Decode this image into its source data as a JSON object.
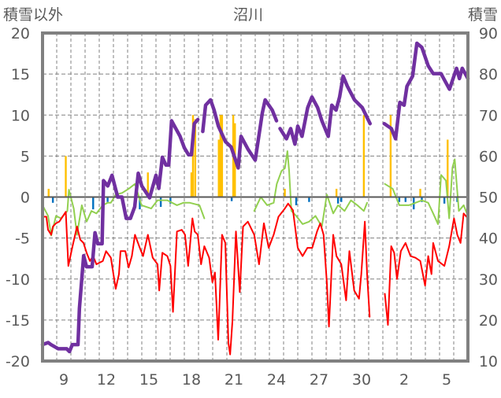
{
  "chart_data": {
    "type": "line",
    "title": "沼川",
    "ylabel_left": "積雪以外",
    "ylabel_right": "積雪",
    "ylim_left": [
      -20,
      20
    ],
    "ylim_right": [
      10,
      90
    ],
    "yticks_left": [
      20,
      15,
      10,
      5,
      0,
      -5,
      -10,
      -15,
      -20
    ],
    "yticks_right": [
      90,
      80,
      70,
      60,
      50,
      40,
      30,
      20,
      10
    ],
    "xlim_days": [
      7.5,
      37.5
    ],
    "xticks": [
      {
        "day": 9,
        "label": "9"
      },
      {
        "day": 12,
        "label": "12"
      },
      {
        "day": 15,
        "label": "15"
      },
      {
        "day": 18,
        "label": "18"
      },
      {
        "day": 21,
        "label": "21"
      },
      {
        "day": 24,
        "label": "24"
      },
      {
        "day": 27,
        "label": "27"
      },
      {
        "day": 30,
        "label": "30"
      },
      {
        "day": 33,
        "label": "2"
      },
      {
        "day": 36,
        "label": "5"
      }
    ],
    "grid": true,
    "colors": {
      "snow": "#7030a0",
      "red": "#ff0000",
      "green": "#92d050",
      "orange": "#ffc000",
      "blue": "#0070c0",
      "axis": "#808080",
      "grid": "#808080"
    },
    "snow_depth_right_axis": [
      [
        [
          7.5,
          14
        ],
        [
          7.9,
          14.5
        ],
        [
          8.1,
          14
        ],
        [
          8.6,
          13
        ],
        [
          9.2,
          13
        ],
        [
          9.4,
          12.3
        ],
        [
          9.6,
          14
        ],
        [
          10.0,
          14
        ],
        [
          10.1,
          22.8
        ],
        [
          10.4,
          35.7
        ],
        [
          10.6,
          33
        ],
        [
          11.0,
          33
        ],
        [
          11.2,
          41.3
        ],
        [
          11.4,
          38.6
        ],
        [
          11.7,
          38.6
        ],
        [
          11.8,
          54
        ],
        [
          12.1,
          52.7
        ],
        [
          12.4,
          55.3
        ],
        [
          12.8,
          50
        ],
        [
          13.1,
          50
        ],
        [
          13.4,
          44.8
        ],
        [
          13.7,
          44.8
        ],
        [
          14.0,
          47.6
        ],
        [
          14.25,
          55.8
        ],
        [
          14.5,
          52.7
        ],
        [
          15.05,
          49.8
        ],
        [
          15.5,
          55.3
        ],
        [
          15.7,
          52.1
        ],
        [
          15.95,
          59.7
        ],
        [
          16.2,
          57.8
        ],
        [
          16.4,
          57.8
        ],
        [
          16.6,
          68.6
        ],
        [
          16.9,
          66.7
        ],
        [
          17.2,
          64.8
        ],
        [
          17.5,
          62
        ],
        [
          17.8,
          60.3
        ],
        [
          18.0,
          60.3
        ],
        [
          18.2,
          67.9
        ],
        [
          18.45,
          68.9
        ]
      ],
      [
        [
          18.8,
          66
        ],
        [
          19.0,
          72.4
        ],
        [
          19.35,
          73.7
        ],
        [
          19.6,
          71.2
        ],
        [
          19.9,
          67.3
        ],
        [
          20.4,
          63.5
        ],
        [
          20.8,
          62.2
        ],
        [
          21.3,
          57.1
        ],
        [
          21.5,
          64.8
        ],
        [
          22.0,
          61.6
        ],
        [
          22.5,
          59
        ],
        [
          23.0,
          70.5
        ],
        [
          23.2,
          73.7
        ],
        [
          23.7,
          71.2
        ],
        [
          24.0,
          68.6
        ]
      ],
      [
        [
          24.25,
          66.7
        ],
        [
          24.7,
          64.2
        ],
        [
          25.0,
          66.7
        ],
        [
          25.3,
          62.9
        ],
        [
          25.5,
          67.3
        ],
        [
          25.8,
          64.8
        ],
        [
          26.2,
          71.8
        ],
        [
          26.5,
          74.4
        ],
        [
          26.9,
          71.8
        ],
        [
          27.2,
          68.6
        ],
        [
          27.65,
          64.8
        ],
        [
          27.9,
          72.4
        ],
        [
          28.2,
          71.2
        ],
        [
          28.45,
          74.4
        ],
        [
          28.7,
          79.5
        ],
        [
          29.0,
          77
        ],
        [
          29.5,
          73.7
        ],
        [
          30.05,
          71.8
        ],
        [
          30.6,
          67.9
        ]
      ],
      [
        [
          31.6,
          67.9
        ],
        [
          32.1,
          66.7
        ],
        [
          32.4,
          64.2
        ],
        [
          32.7,
          73.1
        ],
        [
          33.0,
          72.4
        ],
        [
          33.2,
          77
        ],
        [
          33.6,
          79.5
        ],
        [
          33.9,
          87.5
        ],
        [
          34.25,
          86.5
        ],
        [
          34.7,
          82
        ],
        [
          35.05,
          80.1
        ],
        [
          35.6,
          80.1
        ],
        [
          36.2,
          76.3
        ],
        [
          36.7,
          81.4
        ],
        [
          36.9,
          78.9
        ],
        [
          37.1,
          81.4
        ],
        [
          37.5,
          78.9
        ]
      ]
    ],
    "red_series_left_axis": [
      [
        [
          7.5,
          -2.4
        ],
        [
          7.77,
          -2.4
        ],
        [
          7.89,
          -4
        ],
        [
          8.11,
          -4.6
        ],
        [
          8.23,
          -3.6
        ],
        [
          8.45,
          -3.2
        ],
        [
          8.68,
          -3
        ],
        [
          8.91,
          -2.4
        ],
        [
          9.14,
          -1.8
        ],
        [
          9.32,
          -8.4
        ],
        [
          9.59,
          -6.2
        ],
        [
          9.93,
          -3.6
        ],
        [
          10.16,
          -5.2
        ],
        [
          10.39,
          -5.6
        ],
        [
          10.61,
          -6.8
        ],
        [
          10.84,
          -7.8
        ],
        [
          11.07,
          -7.2
        ],
        [
          11.3,
          -8.2
        ],
        [
          11.75,
          -7.8
        ],
        [
          11.98,
          -6.6
        ],
        [
          12.32,
          -7.4
        ],
        [
          12.66,
          -11.2
        ],
        [
          12.89,
          -9.4
        ],
        [
          13.0,
          -6.6
        ],
        [
          13.34,
          -6.6
        ],
        [
          13.57,
          -8.6
        ],
        [
          13.8,
          -7.2
        ],
        [
          14.02,
          -4.6
        ],
        [
          14.36,
          -6.2
        ],
        [
          14.59,
          -7.2
        ],
        [
          14.93,
          -4.6
        ],
        [
          15.27,
          -7.4
        ],
        [
          15.61,
          -8.2
        ],
        [
          15.73,
          -11.4
        ],
        [
          15.95,
          -6.8
        ],
        [
          16.3,
          -7.2
        ],
        [
          16.52,
          -8.4
        ],
        [
          16.7,
          -14
        ],
        [
          16.98,
          -4.2
        ],
        [
          17.32,
          -4
        ],
        [
          17.55,
          -4.6
        ],
        [
          17.77,
          -8.4
        ],
        [
          18.07,
          -2.6
        ],
        [
          18.23,
          -4.2
        ],
        [
          18.45,
          -4.6
        ],
        [
          18.68,
          -8.2
        ],
        [
          18.91,
          -6
        ],
        [
          19.25,
          -7.4
        ],
        [
          19.48,
          -10.4
        ],
        [
          19.66,
          -9.2
        ],
        [
          19.89,
          -17.4
        ],
        [
          20.16,
          -4.6
        ],
        [
          20.39,
          -5.6
        ],
        [
          20.61,
          -17.8
        ],
        [
          20.73,
          -19.2
        ],
        [
          20.89,
          -15.2
        ],
        [
          21.14,
          -4.2
        ],
        [
          21.41,
          -11.6
        ],
        [
          21.64,
          -3.6
        ],
        [
          21.98,
          -3
        ],
        [
          22.43,
          -4.6
        ],
        [
          22.77,
          -8.2
        ],
        [
          23.11,
          -3.2
        ],
        [
          23.45,
          -6.2
        ],
        [
          23.8,
          -4.6
        ],
        [
          24.14,
          -2.4
        ],
        [
          24.59,
          -1.4
        ],
        [
          24.82,
          -0.8
        ],
        [
          25.16,
          -1.6
        ],
        [
          25.5,
          -6.2
        ],
        [
          25.84,
          -7.2
        ],
        [
          26.18,
          -6.2
        ],
        [
          26.52,
          -6.2
        ],
        [
          26.86,
          -4.2
        ],
        [
          27.09,
          -3.2
        ],
        [
          27.32,
          -4.6
        ],
        [
          27.55,
          -10.4
        ],
        [
          27.7,
          -15.8
        ],
        [
          28.0,
          -4.6
        ],
        [
          28.23,
          -7.2
        ],
        [
          28.57,
          -8.2
        ],
        [
          28.91,
          -12.6
        ],
        [
          29.14,
          -6.6
        ],
        [
          29.48,
          -11.4
        ],
        [
          29.82,
          -12.4
        ],
        [
          29.98,
          -9.4
        ],
        [
          30.23,
          -3
        ],
        [
          30.39,
          -9.4
        ],
        [
          30.57,
          -14.6
        ]
      ],
      [
        [
          31.64,
          -11.8
        ],
        [
          31.86,
          -15.6
        ],
        [
          32.09,
          -6
        ],
        [
          32.3,
          -6.8
        ],
        [
          32.5,
          -10
        ],
        [
          32.77,
          -6.6
        ],
        [
          33.1,
          -5.6
        ],
        [
          33.45,
          -7.2
        ],
        [
          33.8,
          -7.4
        ],
        [
          34.14,
          -7.8
        ],
        [
          34.48,
          -10.8
        ],
        [
          34.7,
          -7.2
        ],
        [
          34.93,
          -9.4
        ],
        [
          35.05,
          -5.6
        ],
        [
          35.39,
          -7.8
        ],
        [
          35.84,
          -8.4
        ],
        [
          36.18,
          -6
        ],
        [
          36.52,
          -2.6
        ],
        [
          36.75,
          -4.6
        ],
        [
          36.98,
          -5.6
        ],
        [
          37.2,
          -2
        ],
        [
          37.5,
          -2.6
        ]
      ]
    ],
    "green_series_left_axis": [
      [
        [
          7.5,
          -1
        ],
        [
          7.89,
          -2.3
        ],
        [
          8.11,
          -4.7
        ],
        [
          8.45,
          -2.3
        ],
        [
          8.8,
          -2.6
        ],
        [
          9.25,
          -1.7
        ],
        [
          9.36,
          0.9
        ],
        [
          9.7,
          -1.4
        ],
        [
          9.93,
          -4.6
        ],
        [
          10.27,
          -1
        ],
        [
          10.61,
          -3
        ],
        [
          10.95,
          -1.7
        ],
        [
          11.3,
          -2
        ],
        [
          11.75,
          -1
        ],
        [
          12.09,
          -0.7
        ],
        [
          12.32,
          -0.7
        ],
        [
          12.66,
          0.3
        ],
        [
          13.11,
          0.5
        ],
        [
          13.57,
          1
        ],
        [
          14.02,
          1.6
        ],
        [
          14.48,
          -1
        ],
        [
          15.16,
          -1.4
        ],
        [
          15.61,
          -0.4
        ],
        [
          16.3,
          -0.4
        ],
        [
          16.98,
          -1
        ],
        [
          17.43,
          -0.7
        ],
        [
          17.89,
          -0.7
        ],
        [
          18.57,
          -1
        ],
        [
          18.91,
          -2.6
        ]
      ],
      [
        [
          22.43,
          -1.7
        ],
        [
          22.89,
          0
        ],
        [
          23.34,
          -1
        ],
        [
          23.8,
          -0.7
        ],
        [
          24.02,
          1.6
        ],
        [
          24.36,
          3.2
        ],
        [
          24.59,
          3.5
        ],
        [
          24.77,
          5.6
        ],
        [
          24.89,
          3.2
        ],
        [
          25.05,
          -1.7
        ],
        [
          25.39,
          -2.3
        ],
        [
          25.84,
          -3.3
        ],
        [
          26.3,
          -3
        ],
        [
          26.75,
          -2.3
        ],
        [
          27.2,
          -3.6
        ],
        [
          27.55,
          0.3
        ],
        [
          28.0,
          -2
        ],
        [
          28.34,
          -1
        ],
        [
          28.8,
          -1.7
        ],
        [
          29.25,
          -0.4
        ],
        [
          29.7,
          -1
        ],
        [
          30.16,
          -1.7
        ],
        [
          30.39,
          -0.7
        ]
      ],
      [
        [
          31.64,
          1.6
        ],
        [
          32.2,
          1
        ],
        [
          32.66,
          -1
        ],
        [
          33.34,
          -1
        ],
        [
          33.8,
          -0.7
        ],
        [
          34.25,
          -0.4
        ],
        [
          34.7,
          -0.7
        ],
        [
          35.05,
          -2
        ],
        [
          35.39,
          -3.3
        ],
        [
          35.61,
          2.7
        ],
        [
          35.95,
          2
        ],
        [
          36.18,
          -2.6
        ],
        [
          36.41,
          3.6
        ],
        [
          36.57,
          4.6
        ],
        [
          36.86,
          -1.7
        ],
        [
          37.2,
          -1
        ],
        [
          37.5,
          -2.3
        ]
      ]
    ],
    "orange_bars_left_axis": [
      [
        7.93,
        1
      ],
      [
        9.14,
        5
      ],
      [
        14.93,
        3
      ],
      [
        18.0,
        3
      ],
      [
        18.11,
        10
      ],
      [
        18.27,
        9.5
      ],
      [
        19.93,
        7
      ],
      [
        20.05,
        10
      ],
      [
        20.16,
        10
      ],
      [
        20.95,
        10
      ],
      [
        21.07,
        9
      ],
      [
        24.59,
        1
      ],
      [
        28.23,
        1
      ],
      [
        30.16,
        10
      ],
      [
        32.05,
        10
      ],
      [
        34.14,
        1
      ],
      [
        36.07,
        7
      ]
    ],
    "blue_bars_left_axis": [
      [
        8.23,
        -0.7
      ],
      [
        11.07,
        -1.5
      ],
      [
        12.09,
        -0.6
      ],
      [
        14.36,
        -1.5
      ],
      [
        15.84,
        -1.2
      ],
      [
        16.52,
        -0.8
      ],
      [
        20.84,
        -0.5
      ],
      [
        25.39,
        -1
      ],
      [
        26.3,
        -0.6
      ],
      [
        28.34,
        -0.8
      ],
      [
        28.57,
        -0.6
      ],
      [
        32.66,
        -0.6
      ],
      [
        33.1,
        -0.6
      ],
      [
        33.68,
        -1.5
      ],
      [
        34.25,
        -0.6
      ],
      [
        35.84,
        -0.8
      ],
      [
        36.75,
        -0.6
      ]
    ]
  }
}
